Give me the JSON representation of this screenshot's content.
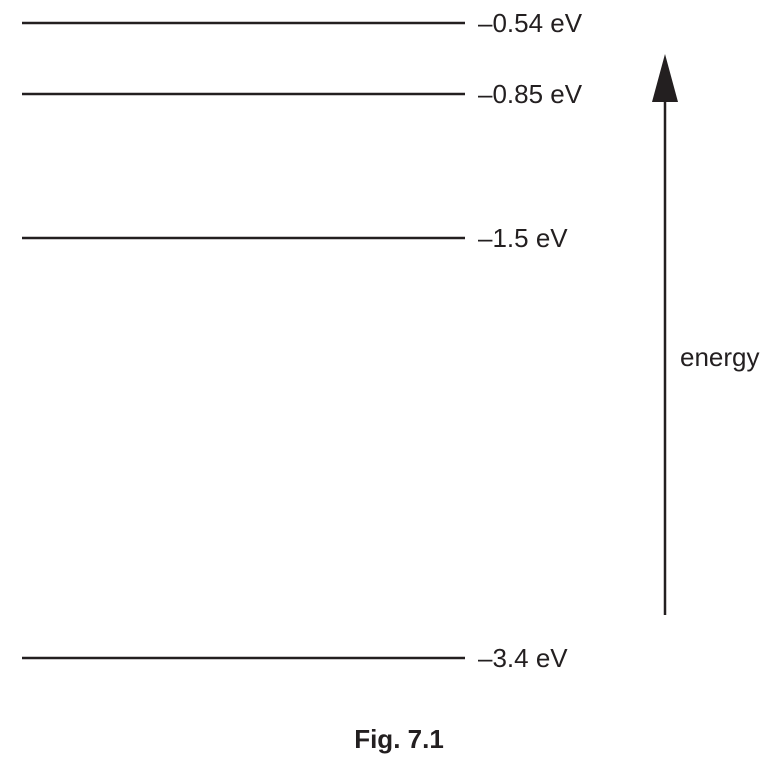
{
  "energy_levels": [
    {
      "energy_ev": -0.54,
      "label": "–0.54 eV"
    },
    {
      "energy_ev": -0.85,
      "label": "–0.85 eV"
    },
    {
      "energy_ev": -1.5,
      "label": "–1.5 eV"
    },
    {
      "energy_ev": -3.4,
      "label": "–3.4 eV"
    }
  ],
  "axis": {
    "label": "energy",
    "direction": "up"
  },
  "caption": "Fig. 7.1",
  "colors": {
    "ink": "#231f20",
    "background": "#ffffff"
  }
}
